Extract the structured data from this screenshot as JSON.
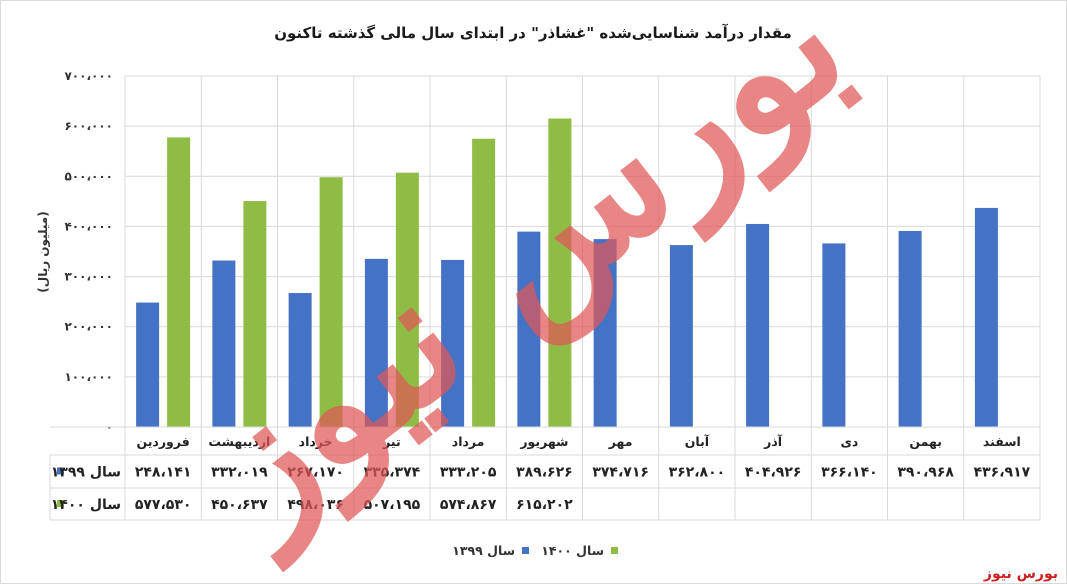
{
  "chart_data": {
    "type": "bar",
    "title": "مقدار درآمد شناسایی‌شده \"غشاذر\" در ابتدای سال مالی گذشته تاکنون",
    "ylabel": "(میلیون ریال)",
    "ylim": [
      0,
      700000
    ],
    "y_ticks": [
      0,
      100000,
      200000,
      300000,
      400000,
      500000,
      600000,
      700000
    ],
    "y_tick_labels": [
      "۰",
      "۱۰۰،۰۰۰",
      "۲۰۰،۰۰۰",
      "۳۰۰،۰۰۰",
      "۴۰۰،۰۰۰",
      "۵۰۰،۰۰۰",
      "۶۰۰،۰۰۰",
      "۷۰۰،۰۰۰"
    ],
    "categories": [
      "فروردین",
      "اردیبهشت",
      "خرداد",
      "تیر",
      "مرداد",
      "شهریور",
      "مهر",
      "آبان",
      "آذر",
      "دی",
      "بهمن",
      "اسفند"
    ],
    "series": [
      {
        "name": "سال ۱۳۹۹",
        "color": "#4472c4",
        "values": [
          248141,
          332019,
          267170,
          335374,
          333205,
          389626,
          374716,
          362800,
          404926,
          366140,
          390968,
          436917
        ],
        "labels": [
          "۲۴۸،۱۴۱",
          "۳۳۲،۰۱۹",
          "۲۶۷،۱۷۰",
          "۳۳۵،۳۷۴",
          "۳۳۳،۲۰۵",
          "۳۸۹،۶۲۶",
          "۳۷۴،۷۱۶",
          "۳۶۲،۸۰۰",
          "۴۰۴،۹۲۶",
          "۳۶۶،۱۴۰",
          "۳۹۰،۹۶۸",
          "۴۳۶،۹۱۷"
        ]
      },
      {
        "name": "سال ۱۴۰۰",
        "color": "#8fbc45",
        "values": [
          577530,
          450637,
          498036,
          507195,
          574867,
          615202,
          null,
          null,
          null,
          null,
          null,
          null
        ],
        "labels": [
          "۵۷۷،۵۳۰",
          "۴۵۰،۶۳۷",
          "۴۹۸،۰۳۶",
          "۵۰۷،۱۹۵",
          "۵۷۴،۸۶۷",
          "۶۱۵،۲۰۲",
          "",
          "",
          "",
          "",
          "",
          ""
        ]
      }
    ],
    "grid": true,
    "legend": "bottom",
    "data_table": true
  },
  "watermark": "بورس نیوز",
  "source": "بورس نیوز"
}
